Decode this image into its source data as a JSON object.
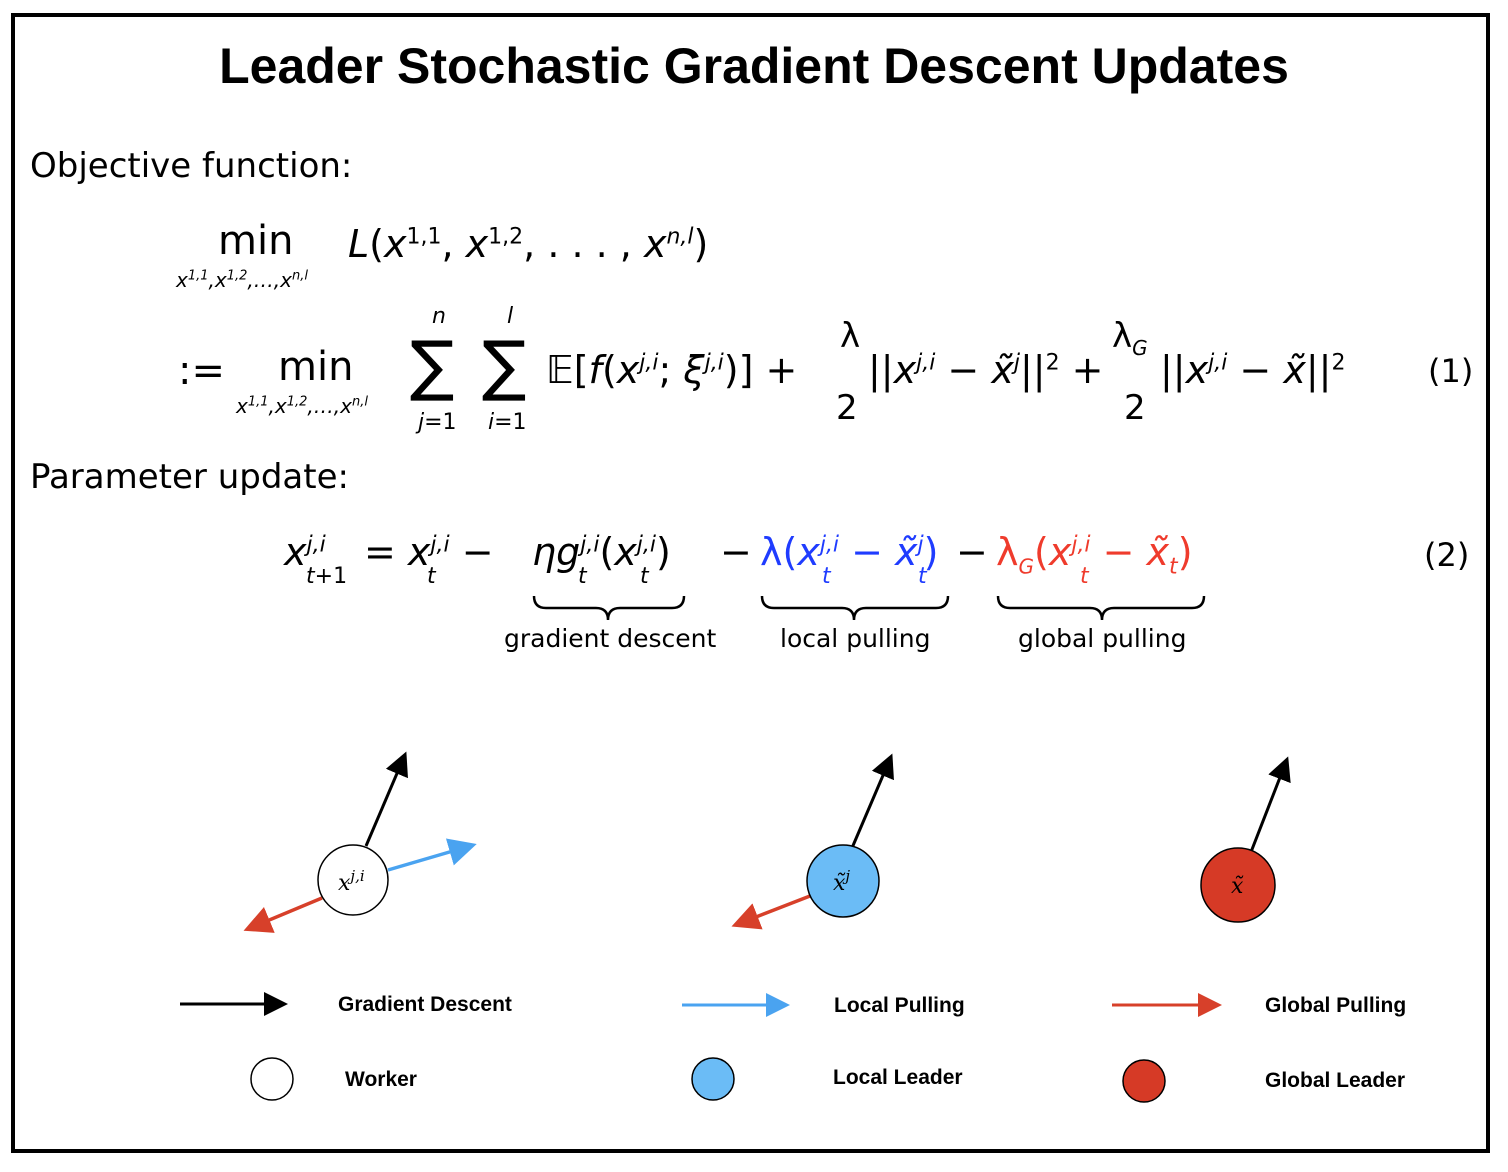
{
  "title": "Leader Stochastic Gradient Descent Updates",
  "sections": {
    "objective": "Objective function:",
    "parameter": "Parameter update:"
  },
  "equation_numbers": {
    "eq1": "(1)",
    "eq2": "(2)"
  },
  "brace_labels": {
    "gradient": "gradient descent",
    "local": "local pulling",
    "global": "global pulling"
  },
  "node_labels": {
    "worker": "x^{j,i}",
    "local_leader": "x̃^j",
    "global_leader": "x̃"
  },
  "legend": {
    "gradient_descent": "Gradient Descent",
    "local_pulling": "Local Pulling",
    "global_pulling": "Global Pulling",
    "worker": "Worker",
    "local_leader": "Local Leader",
    "global_leader": "Global Leader"
  },
  "colors": {
    "gradient": "#000000",
    "local": "#4aa3f0",
    "local_text": "#1f3cff",
    "global": "#d7402a",
    "global_text": "#ef3b2c",
    "local_leader_fill": "#6bbcf6",
    "global_leader_fill": "#d63a26",
    "worker_fill": "#ffffff"
  }
}
